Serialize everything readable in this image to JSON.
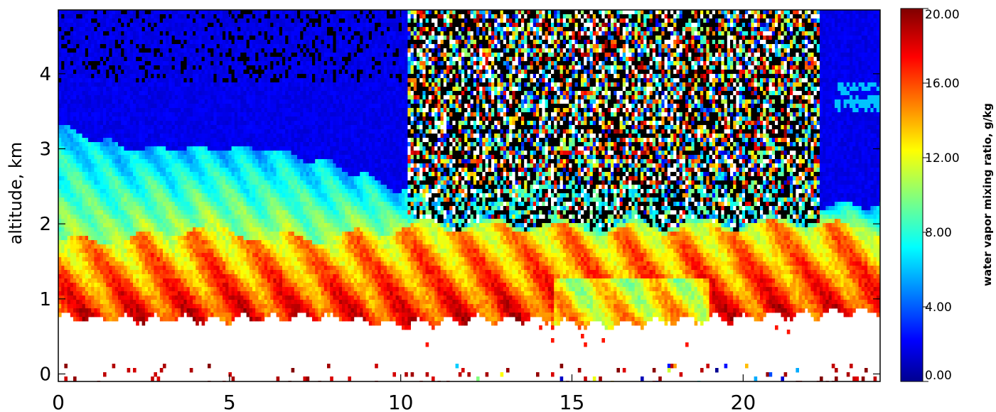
{
  "chart_data": {
    "type": "heatmap",
    "title": "",
    "xlabel": "",
    "ylabel": "altitude, km",
    "xlim": [
      0,
      24
    ],
    "ylim": [
      -0.1,
      4.85
    ],
    "x_ticks": [
      "0",
      "5",
      "10",
      "15",
      "20"
    ],
    "x_tick_values": [
      0,
      5,
      10,
      15,
      20
    ],
    "y_ticks": [
      "0",
      "1",
      "2",
      "3",
      "4"
    ],
    "y_tick_values": [
      0,
      1,
      2,
      3,
      4
    ],
    "colorbar": {
      "label": "water vapor mixing ratio, g/kg",
      "min": 0,
      "max": 20,
      "tick_labels": [
        "0.00",
        "4.00",
        "8.00",
        "12.00",
        "16.00",
        "20.00"
      ],
      "tick_values": [
        0,
        4,
        8,
        12,
        16,
        20
      ],
      "colormap": "jet",
      "colors": [
        "#00008f",
        "#0000ff",
        "#00ffff",
        "#ffff00",
        "#ff0000",
        "#800000"
      ]
    },
    "missing_data_color": "#ffffff",
    "noise_colors": [
      "#000000",
      "#ffffff"
    ],
    "profile_levels": {
      "description_none": "",
      "times_hours": [
        0,
        2,
        4,
        6,
        8,
        10,
        12,
        14,
        16,
        18,
        20,
        22,
        24
      ],
      "boundary_layer_top_km": [
        1.75,
        1.8,
        1.95,
        1.85,
        1.8,
        1.95,
        1.95,
        1.95,
        1.9,
        1.95,
        1.95,
        2.0,
        1.9
      ],
      "moist_layer_top_km": [
        3.3,
        3.0,
        3.0,
        3.0,
        2.8,
        2.45,
        2.3,
        2.3,
        2.3,
        2.3,
        2.3,
        2.25,
        2.25
      ],
      "lowest_valid_altitude_km": [
        0.75,
        0.72,
        0.72,
        0.75,
        0.75,
        0.65,
        0.72,
        0.72,
        0.65,
        0.72,
        0.75,
        0.8,
        0.85
      ],
      "noise_region_start_hour": 10.2,
      "noise_region_end_hour": 22.2
    }
  }
}
